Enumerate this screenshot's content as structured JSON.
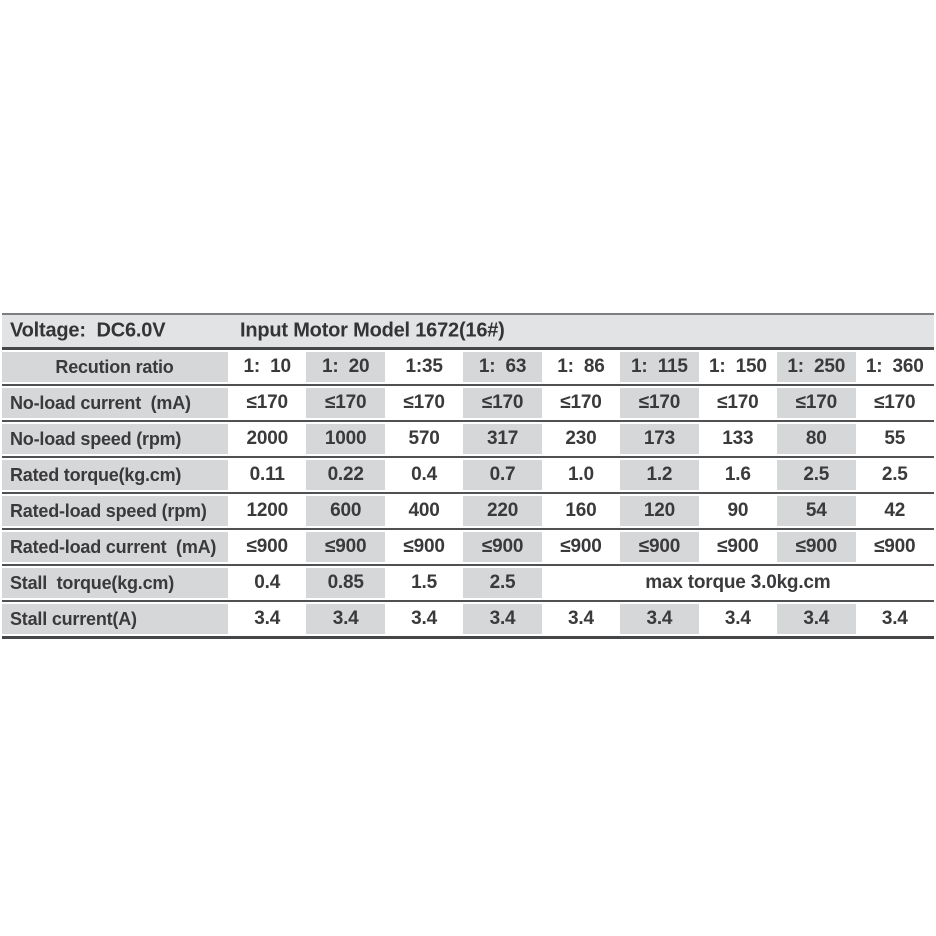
{
  "colors": {
    "page_bg": "#ffffff",
    "stripe_gray": "#d6d7d8",
    "header_gray": "#e2e3e4",
    "row_line": "#505153",
    "heavy_line": "#454648",
    "text": "#3a3a3c"
  },
  "chart_data": {
    "type": "table",
    "title": "Voltage: DC6.0V  Input Motor Model 1672(16#)",
    "header": {
      "voltage": "Voltage:  DC6.0V",
      "model": "Input Motor Model 1672(16#)"
    },
    "ratio_row": {
      "label": "Recution ratio",
      "ratios": [
        "1:  10",
        "1:  20",
        "1:35",
        "1:  63",
        "1:  86",
        "1:  115",
        "1:  150",
        "1:  250",
        "1:  360"
      ]
    },
    "rows": [
      {
        "label": "No-load current  (mA)",
        "values": [
          "≤170",
          "≤170",
          "≤170",
          "≤170",
          "≤170",
          "≤170",
          "≤170",
          "≤170",
          "≤170"
        ]
      },
      {
        "label": "No-load speed (rpm)",
        "values": [
          "2000",
          "1000",
          "570",
          "317",
          "230",
          "173",
          "133",
          "80",
          "55"
        ]
      },
      {
        "label": "Rated torque(kg.cm)",
        "values": [
          "0.11",
          "0.22",
          "0.4",
          "0.7",
          "1.0",
          "1.2",
          "1.6",
          "2.5",
          "2.5"
        ]
      },
      {
        "label": "Rated-load speed (rpm)",
        "values": [
          "1200",
          "600",
          "400",
          "220",
          "160",
          "120",
          "90",
          "54",
          "42"
        ]
      },
      {
        "label": "Rated-load current  (mA)",
        "values": [
          "≤900",
          "≤900",
          "≤900",
          "≤900",
          "≤900",
          "≤900",
          "≤900",
          "≤900",
          "≤900"
        ]
      },
      {
        "label": "Stall  torque(kg.cm)",
        "values": [
          "0.4",
          "0.85",
          "1.5",
          "2.5"
        ],
        "merged_note": "max torque 3.0kg.cm"
      },
      {
        "label": "Stall current(A)",
        "values": [
          "3.4",
          "3.4",
          "3.4",
          "3.4",
          "3.4",
          "3.4",
          "3.4",
          "3.4",
          "3.4"
        ]
      }
    ]
  }
}
